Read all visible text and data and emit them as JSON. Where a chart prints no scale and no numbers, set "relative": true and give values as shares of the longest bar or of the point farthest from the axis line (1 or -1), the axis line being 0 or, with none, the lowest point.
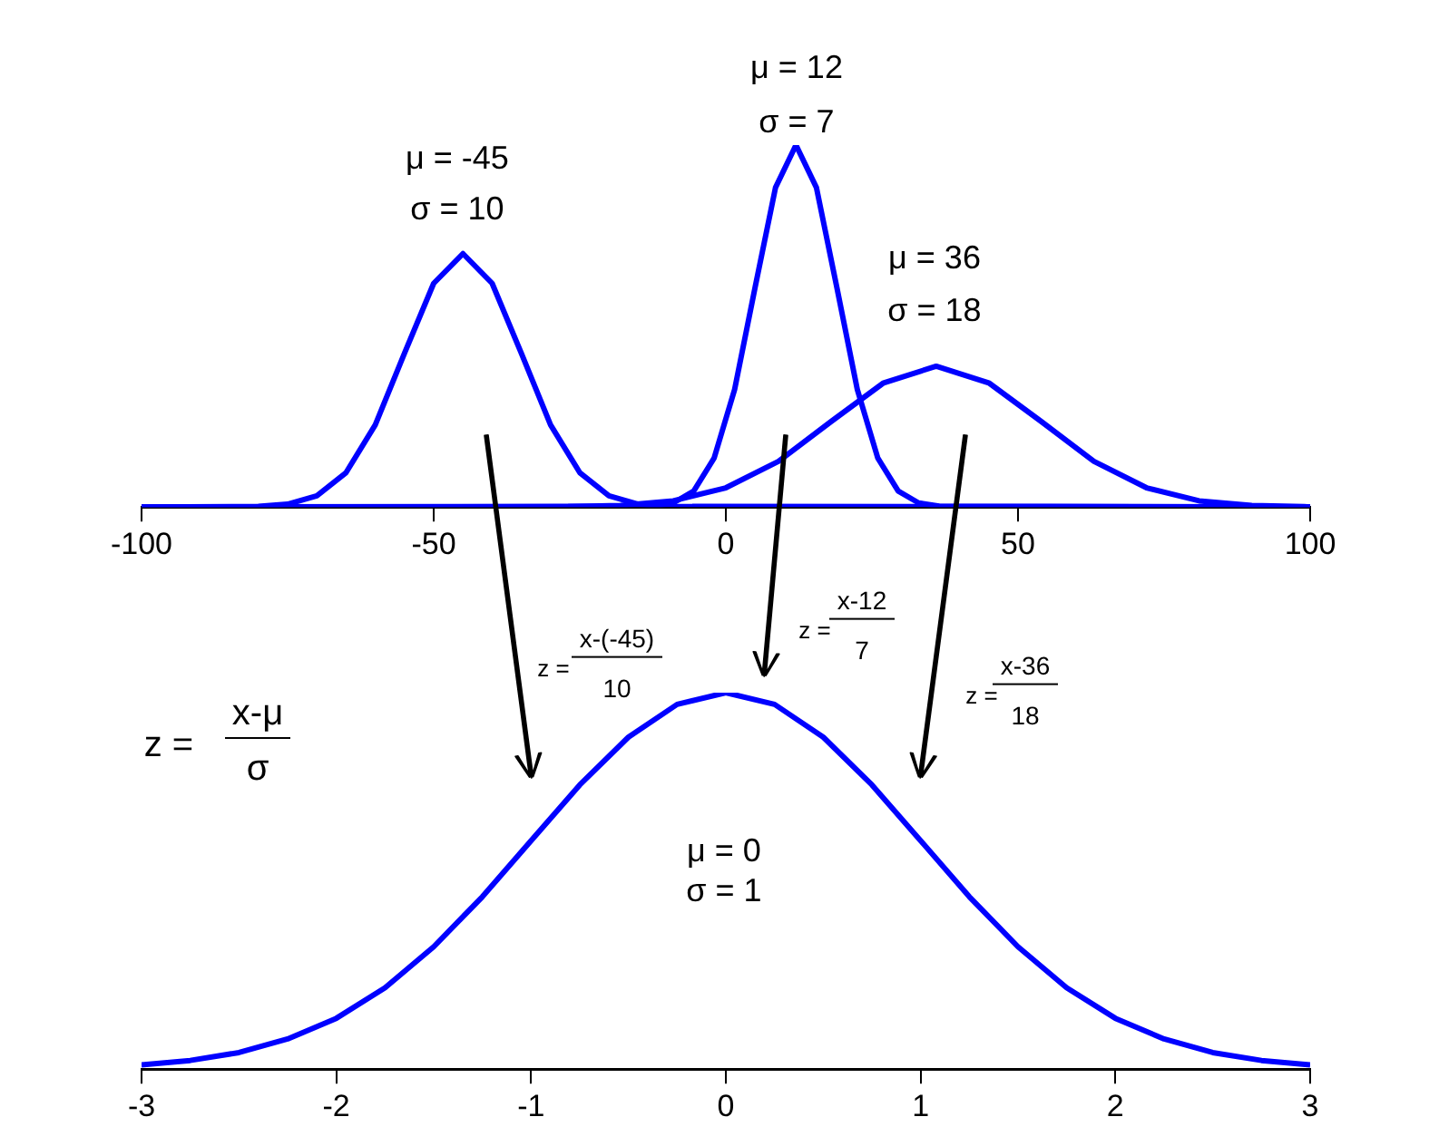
{
  "chart_data": [
    {
      "type": "line",
      "relative": true,
      "marker": "none",
      "xlim": [
        -100,
        100
      ],
      "xticks": [
        -100,
        -50,
        0,
        50,
        100
      ],
      "series": [
        {
          "color": "#0000ff",
          "x": [
            -100,
            -80,
            -75,
            -70,
            -65,
            -60,
            -55,
            -50,
            -45,
            -40,
            -35,
            -30,
            -25,
            -20,
            -15,
            -10,
            100
          ],
          "values": [
            0,
            0.0015,
            0.0078,
            0.031,
            0.095,
            0.227,
            0.425,
            0.618,
            0.7,
            0.618,
            0.425,
            0.227,
            0.095,
            0.031,
            0.0078,
            0.0015,
            0
          ]
        },
        {
          "color": "#0000ff",
          "x": [
            -100,
            -12.5,
            -9,
            -5.5,
            -2,
            1.5,
            5,
            8.5,
            12,
            15.5,
            19,
            22.5,
            26,
            29.5,
            33,
            36.5,
            100
          ],
          "values": [
            0,
            0.0022,
            0.0111,
            0.0439,
            0.1353,
            0.3247,
            0.6065,
            0.8825,
            1,
            0.8825,
            0.6065,
            0.3247,
            0.1353,
            0.0439,
            0.0111,
            0.0022,
            0
          ]
        },
        {
          "color": "#0000ff",
          "x": [
            -100,
            -27,
            -18,
            -9,
            0,
            9,
            18,
            27,
            36,
            45,
            54,
            63,
            72,
            81,
            90,
            99,
            100
          ],
          "values": [
            0,
            0.0009,
            0.0043,
            0.017,
            0.053,
            0.126,
            0.236,
            0.343,
            0.389,
            0.343,
            0.236,
            0.126,
            0.053,
            0.017,
            0.0043,
            0.0009,
            0
          ]
        }
      ],
      "annotations": [
        "μ = -45",
        "σ = 10",
        "μ = 12",
        "σ = 7",
        "μ = 36",
        "σ = 18"
      ]
    },
    {
      "type": "line",
      "relative": true,
      "marker": "none",
      "xlim": [
        -3,
        3
      ],
      "xticks": [
        -3,
        -2,
        -1,
        0,
        1,
        2,
        3
      ],
      "series": [
        {
          "color": "#0000ff",
          "x": [
            -3,
            -2.75,
            -2.5,
            -2.25,
            -2,
            -1.75,
            -1.5,
            -1.25,
            -1,
            -0.75,
            -0.5,
            -0.25,
            0,
            0.25,
            0.5,
            0.75,
            1,
            1.25,
            1.5,
            1.75,
            2,
            2.25,
            2.5,
            2.75,
            3
          ],
          "values": [
            0.011,
            0.023,
            0.044,
            0.08,
            0.135,
            0.216,
            0.325,
            0.458,
            0.607,
            0.755,
            0.882,
            0.969,
            1,
            0.969,
            0.882,
            0.755,
            0.607,
            0.458,
            0.325,
            0.216,
            0.135,
            0.08,
            0.044,
            0.023,
            0.011
          ]
        }
      ],
      "annotations": [
        "z =",
        "x-μ",
        "σ",
        "z =",
        "x-(-45)",
        "10",
        "z =",
        "x-12",
        "7",
        "z =",
        "x-36",
        "18",
        "μ = 0",
        "σ = 1"
      ]
    }
  ]
}
